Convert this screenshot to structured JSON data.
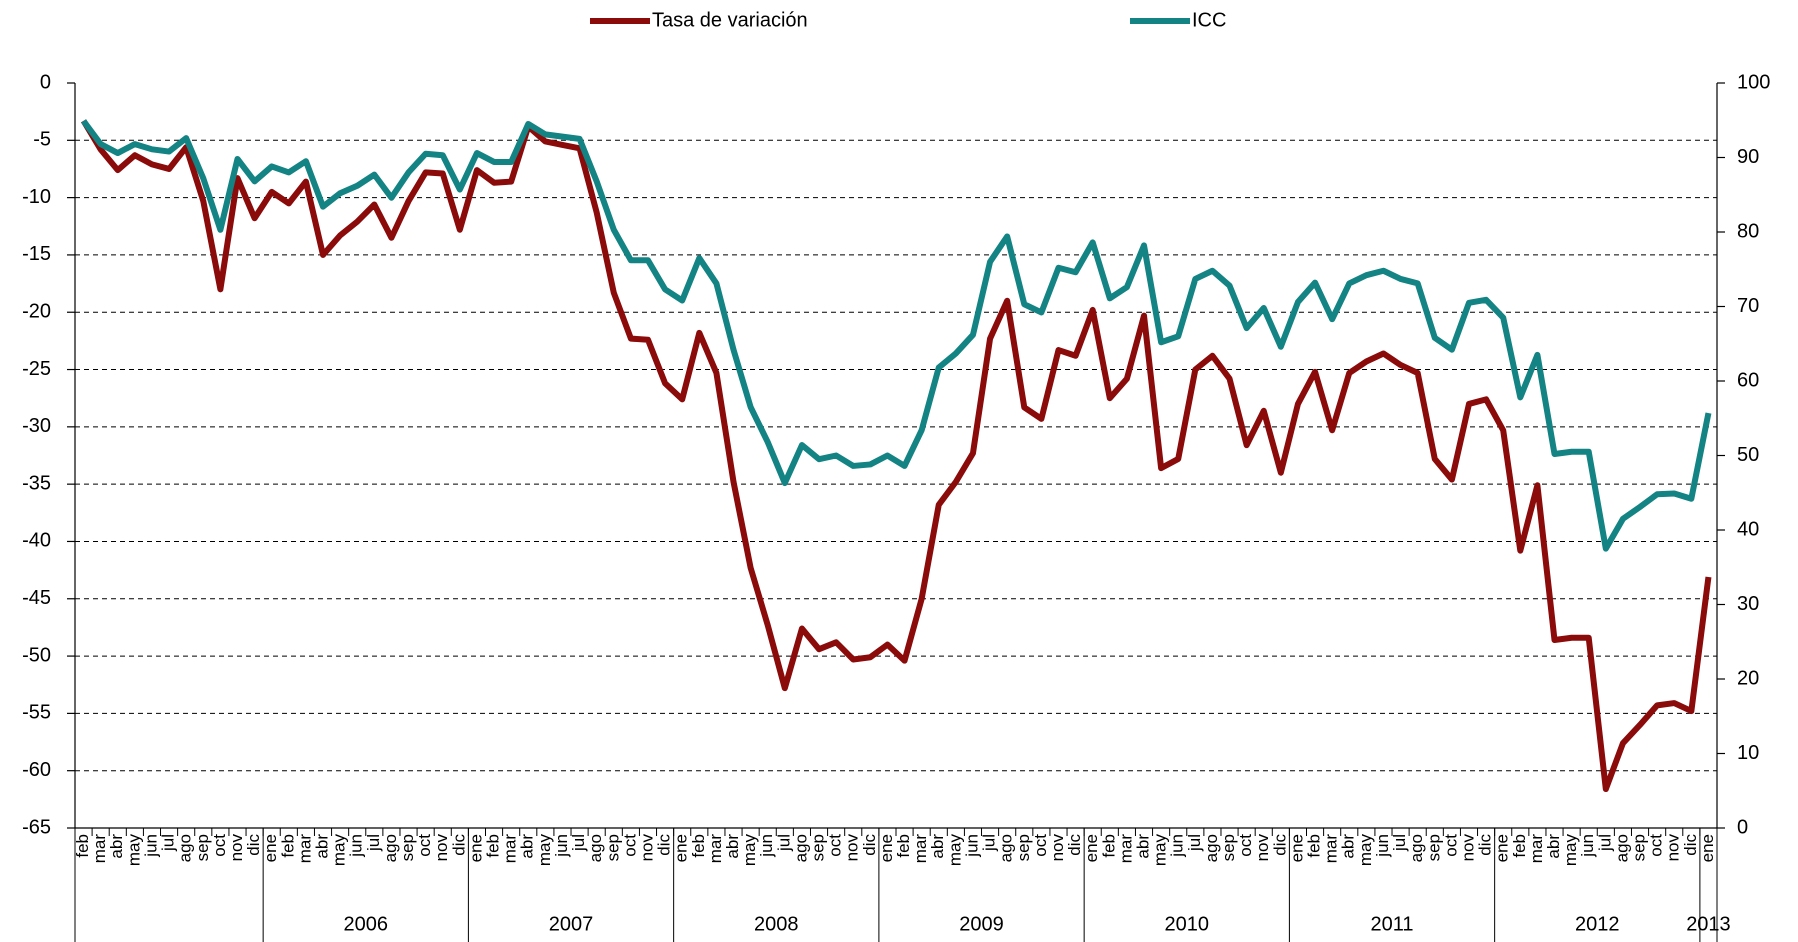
{
  "chart_data": {
    "type": "line",
    "categories": [
      "feb",
      "mar",
      "abr",
      "may",
      "jun",
      "jul",
      "ago",
      "sep",
      "oct",
      "nov",
      "dic",
      "ene",
      "feb",
      "mar",
      "abr",
      "may",
      "jun",
      "jul",
      "ago",
      "sep",
      "oct",
      "nov",
      "dic",
      "ene",
      "feb",
      "mar",
      "abr",
      "may",
      "jun",
      "jul",
      "ago",
      "sep",
      "oct",
      "nov",
      "dic",
      "ene",
      "feb",
      "mar",
      "abr",
      "may",
      "jun",
      "jul",
      "ago",
      "sep",
      "oct",
      "nov",
      "dic",
      "ene",
      "feb",
      "mar",
      "abr",
      "may",
      "jun",
      "jul",
      "ago",
      "sep",
      "oct",
      "nov",
      "dic",
      "ene",
      "feb",
      "mar",
      "abr",
      "may",
      "jun",
      "jul",
      "ago",
      "sep",
      "oct",
      "nov",
      "dic",
      "ene",
      "feb",
      "mar",
      "abr",
      "may",
      "jun",
      "jul",
      "ago",
      "sep",
      "oct",
      "nov",
      "dic",
      "ene",
      "feb",
      "mar",
      "abr",
      "may",
      "jun",
      "jul",
      "ago",
      "sep",
      "oct",
      "nov",
      "dic",
      "ene"
    ],
    "x_group_labels": [
      null,
      "2006",
      "2007",
      "2008",
      "2009",
      "2010",
      "2011",
      "2012",
      "2013"
    ],
    "series": [
      {
        "name": "Tasa de variación",
        "color": "#8b0a0a",
        "axis": "y",
        "values": [
          -3.3,
          -5.8,
          -7.6,
          -6.3,
          -7.1,
          -7.5,
          -5.6,
          -10.3,
          -18,
          -8.3,
          -11.8,
          -9.5,
          -10.5,
          -8.6,
          -15,
          -13.3,
          -12.1,
          -10.6,
          -13.5,
          -10.3,
          -7.8,
          -7.9,
          -12.8,
          -7.6,
          -8.7,
          -8.6,
          -3.8,
          -5.1,
          -5.4,
          -5.7,
          -11.3,
          -18.3,
          -22.3,
          -22.4,
          -26.2,
          -27.6,
          -21.8,
          -25.3,
          -34.8,
          -42.3,
          -47.3,
          -52.8,
          -47.6,
          -49.4,
          -48.8,
          -50.3,
          -50.1,
          -49,
          -50.4,
          -45,
          -36.8,
          -34.8,
          -32.3,
          -22.3,
          -19,
          -28.3,
          -29.3,
          -23.3,
          -23.8,
          -19.8,
          -27.5,
          -25.8,
          -20.3,
          -33.6,
          -32.8,
          -25,
          -23.8,
          -25.8,
          -31.6,
          -28.6,
          -34,
          -28,
          -25.2,
          -30.3,
          -25.3,
          -24.3,
          -23.6,
          -24.6,
          -25.3,
          -32.8,
          -34.6,
          -28,
          -27.6,
          -30.3,
          -40.8,
          -35.1,
          -48.6,
          -48.4,
          -48.4,
          -61.6,
          -57.6,
          -56,
          -54.3,
          -54.1,
          -54.8,
          -43.1
        ]
      },
      {
        "name": "ICC",
        "color": "#138383",
        "axis": "y2",
        "values": [
          94.9,
          91.8,
          90.6,
          91.8,
          91.1,
          90.8,
          92.6,
          87.2,
          80.3,
          89.8,
          86.8,
          88.8,
          88,
          89.5,
          83.4,
          85.2,
          86.2,
          87.7,
          84.6,
          88,
          90.5,
          90.3,
          85.7,
          90.6,
          89.4,
          89.4,
          94.5,
          93.1,
          92.8,
          92.5,
          86.8,
          80.3,
          76.2,
          76.2,
          72.3,
          70.8,
          76.5,
          73.1,
          64.2,
          56.5,
          51.8,
          46.3,
          51.4,
          49.5,
          50,
          48.6,
          48.8,
          50,
          48.6,
          53.4,
          61.8,
          63.7,
          66.2,
          76,
          79.4,
          70.3,
          69.2,
          75.2,
          74.6,
          78.6,
          71.1,
          72.6,
          78.2,
          65.2,
          66,
          73.7,
          74.8,
          72.8,
          67.1,
          69.8,
          64.6,
          70.6,
          73.2,
          68.3,
          73.1,
          74.2,
          74.8,
          73.7,
          73.1,
          65.8,
          64.2,
          70.5,
          70.9,
          68.5,
          57.8,
          63.5,
          50.2,
          50.5,
          50.5,
          37.5,
          41.5,
          43.1,
          44.8,
          44.9,
          44.2,
          55.7
        ]
      }
    ],
    "ylim": [
      -65,
      0
    ],
    "yticks": [
      -65,
      -60,
      -55,
      -50,
      -45,
      -40,
      -35,
      -30,
      -25,
      -20,
      -15,
      -10,
      -5,
      0
    ],
    "y2lim": [
      0,
      100
    ],
    "y2ticks": [
      0,
      10,
      20,
      30,
      40,
      50,
      60,
      70,
      80,
      90,
      100
    ],
    "grid": true,
    "legend": "top"
  }
}
